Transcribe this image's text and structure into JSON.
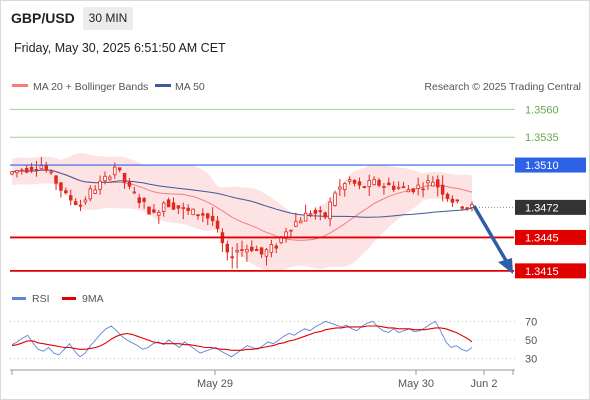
{
  "header": {
    "symbol": "GBP/USD",
    "timeframe": "30 MIN",
    "datetime": "Friday, May 30, 2025 6:51:50 AM CET"
  },
  "legend": {
    "ma20": "MA 20 + Bollinger Bands",
    "ma50": "MA 50",
    "rsi": "RSI",
    "rsi_ma": "9MA",
    "credit": "Research © 2025 Trading Central"
  },
  "colors": {
    "ma20": "#f08080",
    "ma50": "#3d5a99",
    "bollinger_fill": "#fde3e3",
    "candle": "#e0281e",
    "pivot": "#2e62e6",
    "resistance": "#6aa84f",
    "support": "#e00000",
    "current": "#333333",
    "rsi": "#5b86d6",
    "rsi_ma": "#e00000"
  },
  "chart_data": [
    {
      "type": "candlestick",
      "name": "price",
      "ylim": [
        1.3405,
        1.3572
      ],
      "levels": [
        {
          "label": "1.3560",
          "value": 1.356,
          "kind": "resistance"
        },
        {
          "label": "1.3535",
          "value": 1.3535,
          "kind": "resistance"
        },
        {
          "label": "1.3510",
          "value": 1.351,
          "kind": "pivot"
        },
        {
          "label": "1.3472",
          "value": 1.3472,
          "kind": "current"
        },
        {
          "label": "1.3445",
          "value": 1.3445,
          "kind": "support"
        },
        {
          "label": "1.3415",
          "value": 1.3415,
          "kind": "support"
        }
      ],
      "x_ticks": [
        "May 29",
        "May 30",
        "Jun 2"
      ],
      "ohlc_anchors": [
        [
          1.3502,
          1.3507,
          1.35,
          1.3505
        ],
        [
          1.3505,
          1.3512,
          1.3503,
          1.3508
        ],
        [
          1.3508,
          1.3515,
          1.3505,
          1.351
        ],
        [
          1.351,
          1.3512,
          1.349,
          1.3495
        ],
        [
          1.3495,
          1.3498,
          1.3478,
          1.3482
        ],
        [
          1.3482,
          1.3486,
          1.347,
          1.3474
        ],
        [
          1.3474,
          1.349,
          1.3472,
          1.3486
        ],
        [
          1.3486,
          1.35,
          1.3484,
          1.3497
        ],
        [
          1.3497,
          1.3512,
          1.3495,
          1.3509
        ],
        [
          1.3509,
          1.3512,
          1.3485,
          1.3488
        ],
        [
          1.3488,
          1.349,
          1.3475,
          1.3479
        ],
        [
          1.3479,
          1.3482,
          1.346,
          1.3465
        ],
        [
          1.3465,
          1.3482,
          1.3452,
          1.3477
        ],
        [
          1.3477,
          1.3486,
          1.3468,
          1.3472
        ],
        [
          1.3472,
          1.3482,
          1.346,
          1.3468
        ],
        [
          1.3468,
          1.3474,
          1.3462,
          1.3466
        ],
        [
          1.3466,
          1.3472,
          1.3456,
          1.346
        ],
        [
          1.346,
          1.3462,
          1.3422,
          1.3428
        ],
        [
          1.3428,
          1.344,
          1.3412,
          1.3434
        ],
        [
          1.3434,
          1.3442,
          1.3428,
          1.3436
        ],
        [
          1.3436,
          1.3444,
          1.3424,
          1.343
        ],
        [
          1.343,
          1.3442,
          1.3422,
          1.3438
        ],
        [
          1.3438,
          1.3458,
          1.3432,
          1.3452
        ],
        [
          1.3452,
          1.3468,
          1.3448,
          1.3462
        ],
        [
          1.3462,
          1.3474,
          1.3456,
          1.3468
        ],
        [
          1.3468,
          1.3476,
          1.3458,
          1.3464
        ],
        [
          1.3464,
          1.349,
          1.346,
          1.3486
        ],
        [
          1.3486,
          1.3502,
          1.348,
          1.3496
        ],
        [
          1.3496,
          1.35,
          1.3486,
          1.349
        ],
        [
          1.349,
          1.3498,
          1.3484,
          1.3494
        ],
        [
          1.3494,
          1.35,
          1.3488,
          1.3492
        ],
        [
          1.3492,
          1.3498,
          1.3486,
          1.349
        ],
        [
          1.349,
          1.3496,
          1.3482,
          1.3488
        ],
        [
          1.3488,
          1.3496,
          1.3484,
          1.3492
        ],
        [
          1.3492,
          1.3502,
          1.3488,
          1.3496
        ],
        [
          1.3496,
          1.3506,
          1.3476,
          1.3482
        ],
        [
          1.3482,
          1.3486,
          1.347,
          1.3475
        ],
        [
          1.3475,
          1.3478,
          1.3468,
          1.3472
        ]
      ]
    },
    {
      "type": "line",
      "name": "rsi",
      "ylim": [
        20,
        80
      ],
      "y_ticks": [
        30,
        50,
        70
      ],
      "x_ticks": [
        "May 29",
        "May 30",
        "Jun 2"
      ],
      "series": [
        {
          "name": "RSI",
          "values": [
            45,
            48,
            52,
            55,
            47,
            40,
            38,
            42,
            36,
            34,
            40,
            46,
            38,
            32,
            36,
            44,
            50,
            57,
            62,
            65,
            60,
            54,
            50,
            47,
            44,
            40,
            42,
            46,
            48,
            45,
            50,
            46,
            42,
            48,
            44,
            40,
            36,
            38,
            40,
            42,
            38,
            35,
            32,
            36,
            40,
            44,
            42,
            40,
            44,
            48,
            46,
            50,
            54,
            57,
            55,
            59,
            62,
            60,
            64,
            67,
            70,
            68,
            66,
            64,
            66,
            62,
            60,
            65,
            68,
            70,
            64,
            60,
            58,
            62,
            58,
            60,
            62,
            59,
            60,
            63,
            67,
            70,
            60,
            48,
            42,
            44,
            40,
            38,
            42
          ]
        },
        {
          "name": "9MA",
          "values": [
            44,
            45,
            47,
            49,
            49,
            47,
            46,
            45,
            44,
            43,
            42,
            42,
            41,
            40,
            40,
            41,
            42,
            44,
            47,
            51,
            54,
            56,
            57,
            56,
            54,
            52,
            50,
            48,
            47,
            46,
            46,
            46,
            46,
            45,
            45,
            44,
            43,
            42,
            42,
            41,
            40,
            40,
            39,
            39,
            39,
            40,
            40,
            41,
            42,
            43,
            44,
            46,
            47,
            49,
            50,
            52,
            54,
            56,
            58,
            59,
            61,
            62,
            63,
            63,
            64,
            64,
            64,
            64,
            65,
            65,
            65,
            64,
            63,
            63,
            62,
            62,
            62,
            61,
            61,
            61,
            62,
            63,
            63,
            62,
            60,
            58,
            55,
            52,
            48
          ]
        }
      ]
    }
  ]
}
